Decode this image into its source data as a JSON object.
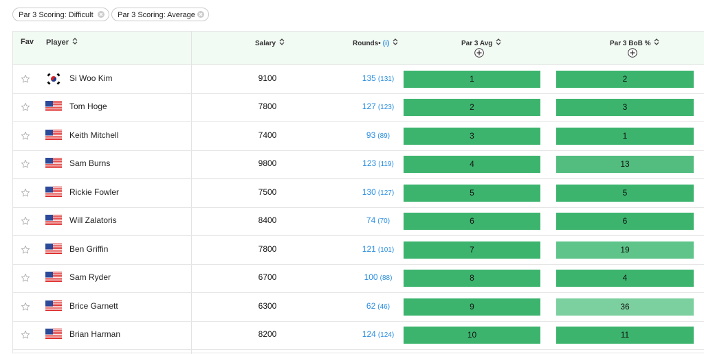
{
  "filters": [
    {
      "label": "Par 3 Scoring: Difficult"
    },
    {
      "label": "Par 3 Scoring: Average"
    }
  ],
  "table": {
    "headers": {
      "fav": "Fav",
      "player": "Player",
      "salary": "Salary",
      "rounds": "Rounds",
      "rounds_info": "(i)",
      "avg": "Par 3 Avg",
      "bob": "Par 3 BoB %"
    },
    "rows": [
      {
        "player": "Si Woo Kim",
        "salary": 9100,
        "rounds": 135,
        "rounds_alt": "(131)",
        "avg": 1,
        "avg_color": "#3cb46e",
        "bob": 2,
        "bob_color": "#3cb46e"
      },
      {
        "player": "Tom Hoge",
        "salary": 7800,
        "rounds": 127,
        "rounds_alt": "(123)",
        "avg": 2,
        "avg_color": "#3cb46e",
        "bob": 3,
        "bob_color": "#3cb46e"
      },
      {
        "player": "Keith Mitchell",
        "salary": 7400,
        "rounds": 93,
        "rounds_alt": "(89)",
        "avg": 3,
        "avg_color": "#3cb46e",
        "bob": 1,
        "bob_color": "#3cb46e"
      },
      {
        "player": "Sam Burns",
        "salary": 9800,
        "rounds": 123,
        "rounds_alt": "(119)",
        "avg": 4,
        "avg_color": "#3cb46e",
        "bob": 13,
        "bob_color": "#52bd7f"
      },
      {
        "player": "Rickie Fowler",
        "salary": 7500,
        "rounds": 130,
        "rounds_alt": "(127)",
        "avg": 5,
        "avg_color": "#3cb46e",
        "bob": 5,
        "bob_color": "#3cb46e"
      },
      {
        "player": "Will Zalatoris",
        "salary": 8400,
        "rounds": 74,
        "rounds_alt": "(70)",
        "avg": 6,
        "avg_color": "#3cb46e",
        "bob": 6,
        "bob_color": "#3cb46e"
      },
      {
        "player": "Ben Griffin",
        "salary": 7800,
        "rounds": 121,
        "rounds_alt": "(101)",
        "avg": 7,
        "avg_color": "#3cb46e",
        "bob": 19,
        "bob_color": "#5ec489"
      },
      {
        "player": "Sam Ryder",
        "salary": 6700,
        "rounds": 100,
        "rounds_alt": "(88)",
        "avg": 8,
        "avg_color": "#3cb46e",
        "bob": 4,
        "bob_color": "#3cb46e"
      },
      {
        "player": "Brice Garnett",
        "salary": 6300,
        "rounds": 62,
        "rounds_alt": "(46)",
        "avg": 9,
        "avg_color": "#3cb46e",
        "bob": 36,
        "bob_color": "#7ccf9e"
      },
      {
        "player": "Brian Harman",
        "salary": 8200,
        "rounds": 124,
        "rounds_alt": "(124)",
        "avg": 10,
        "avg_color": "#3cb46e",
        "bob": 11,
        "bob_color": "#3cb46e"
      }
    ]
  }
}
